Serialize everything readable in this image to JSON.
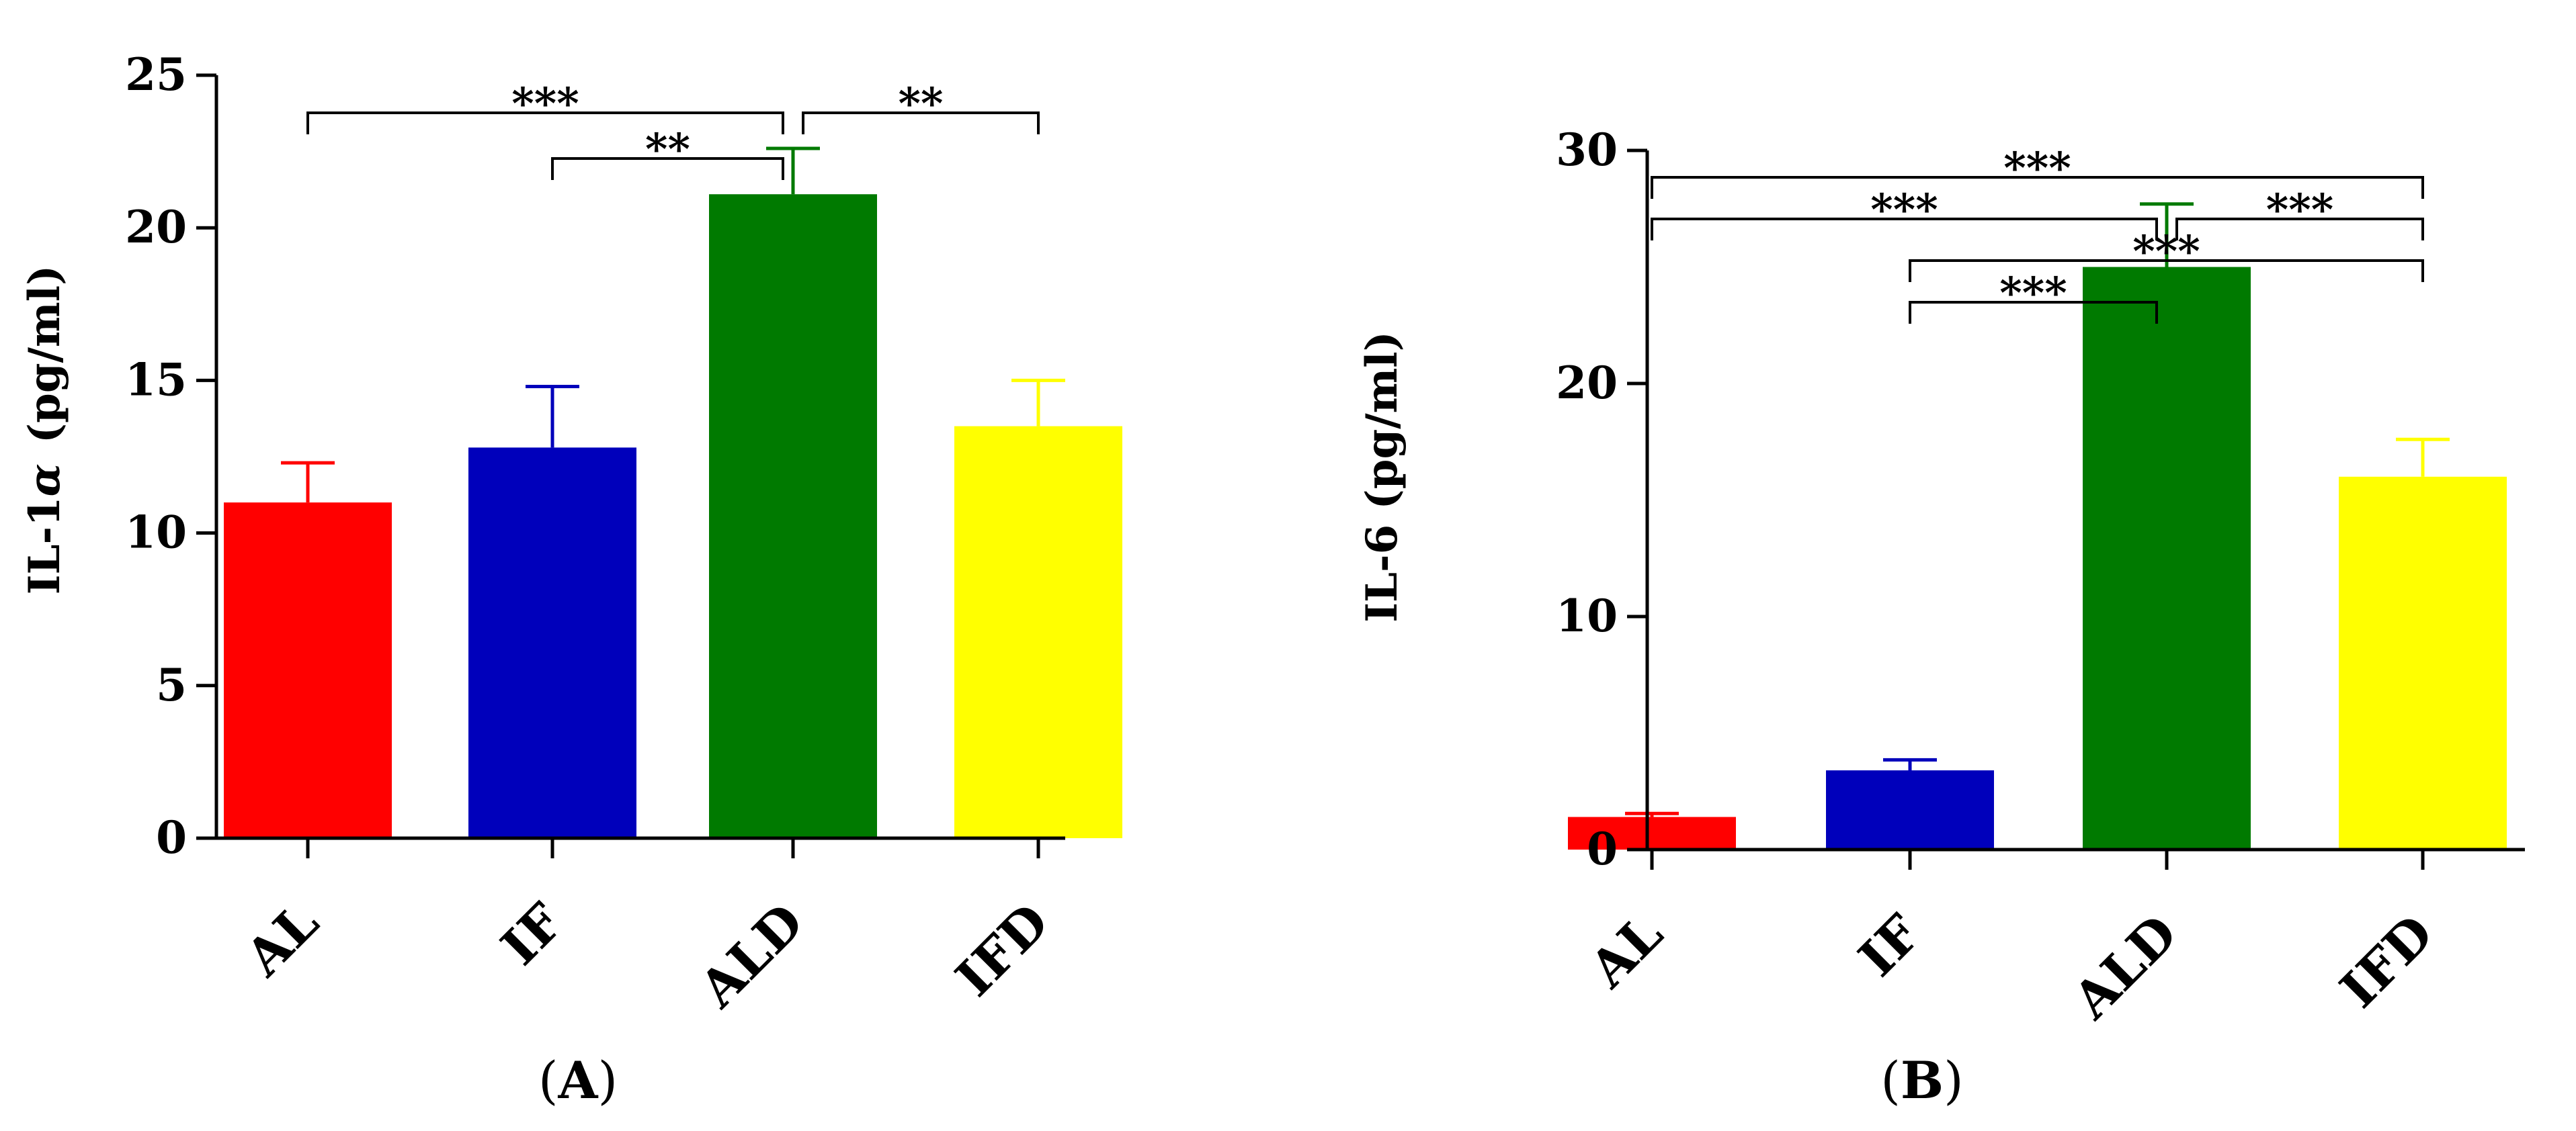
{
  "chart_data": [
    {
      "type": "bar",
      "panel_label": "A",
      "ylabel": "IL-1α (pg/ml)",
      "ylabel_main": "IL-1",
      "ylabel_greek": "α",
      "ylabel_unit": "(pg/ml)",
      "categories": [
        "AL",
        "IF",
        "ALD",
        "IFD"
      ],
      "values": [
        11.0,
        12.8,
        21.1,
        13.5
      ],
      "errors": [
        1.3,
        2.0,
        1.5,
        1.5
      ],
      "colors": [
        "#ff0000",
        "#0000bb",
        "#007a00",
        "#ffff00"
      ],
      "ylim": [
        0,
        25
      ],
      "yticks": [
        0,
        5,
        10,
        15,
        20,
        25
      ],
      "grid": false,
      "significance": [
        {
          "from": 0,
          "to": 2,
          "label": "***",
          "level": 2
        },
        {
          "from": 1,
          "to": 2,
          "label": "**",
          "level": 1
        },
        {
          "from": 2,
          "to": 3,
          "label": "**",
          "level": 2
        }
      ]
    },
    {
      "type": "bar",
      "panel_label": "B",
      "ylabel": "IL-6 (pg/ml)",
      "categories": [
        "AL",
        "IF",
        "ALD",
        "IFD"
      ],
      "values": [
        1.4,
        3.4,
        25.0,
        16.0
      ],
      "errors": [
        0.15,
        0.45,
        2.7,
        1.6
      ],
      "colors": [
        "#ff0000",
        "#0000bb",
        "#007a00",
        "#ffff00"
      ],
      "ylim": [
        0,
        30
      ],
      "yticks": [
        0,
        10,
        20,
        30
      ],
      "grid": false,
      "significance": [
        {
          "from": 0,
          "to": 3,
          "label": "***",
          "level": 4
        },
        {
          "from": 0,
          "to": 2,
          "label": "***",
          "level": 3
        },
        {
          "from": 2,
          "to": 3,
          "label": "***",
          "level": 3
        },
        {
          "from": 1,
          "to": 3,
          "label": "***",
          "level": 2
        },
        {
          "from": 1,
          "to": 2,
          "label": "***",
          "level": 1
        }
      ]
    }
  ]
}
